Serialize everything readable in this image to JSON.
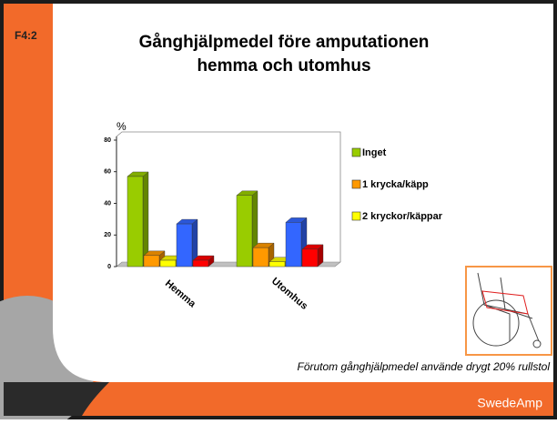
{
  "slide_label": "F4:2",
  "chart_data": {
    "type": "bar3d",
    "title": [
      "Gånghjälpmedel före amputationen",
      "hemma och utomhus"
    ],
    "ylabel": "%",
    "categories": [
      "Hemma",
      "Utomhus"
    ],
    "series": [
      {
        "name": "Inget",
        "color": "#99cc00",
        "values": [
          57,
          45
        ]
      },
      {
        "name": "1 krycka/käpp",
        "color": "#ff9900",
        "values": [
          7,
          12
        ]
      },
      {
        "name": "2 kryckor/käppar",
        "color": "#ffff00",
        "values": [
          4,
          3
        ]
      },
      {
        "color": "#3366ff",
        "values": [
          27,
          28
        ]
      },
      {
        "color": "#ff0000",
        "values": [
          4,
          11
        ]
      }
    ],
    "ylim": [
      0,
      80
    ],
    "yticks": [
      0,
      20,
      40,
      60,
      80
    ],
    "legend": "right"
  },
  "footnote": "Förutom gånghjälpmedel använde drygt 20% rullstol",
  "brand": "SwedeAmp"
}
